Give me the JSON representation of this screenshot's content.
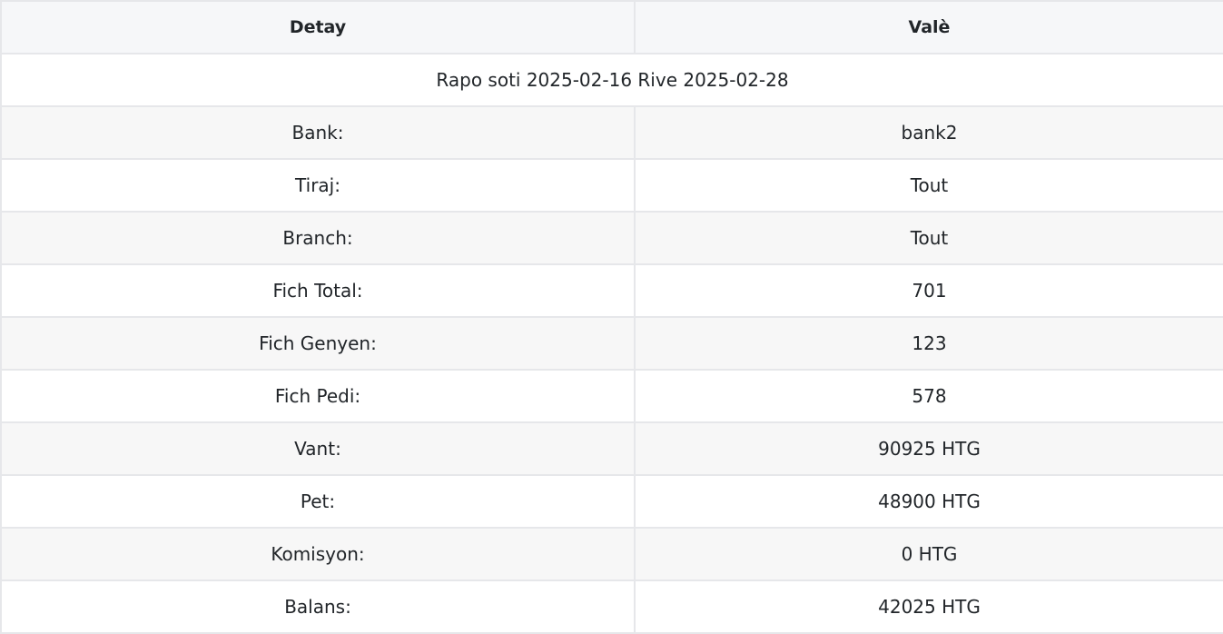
{
  "table": {
    "headers": [
      "Detay",
      "Valè"
    ],
    "banner": "Rapo soti 2025-02-16 Rive 2025-02-28",
    "rows": [
      {
        "label": "Bank:",
        "value": "bank2"
      },
      {
        "label": "Tiraj:",
        "value": "Tout"
      },
      {
        "label": "Branch:",
        "value": "Tout"
      },
      {
        "label": "Fich Total:",
        "value": "701"
      },
      {
        "label": "Fich Genyen:",
        "value": "123"
      },
      {
        "label": "Fich Pedi:",
        "value": "578"
      },
      {
        "label": "Vant:",
        "value": "90925 HTG"
      },
      {
        "label": "Pet:",
        "value": "48900 HTG"
      },
      {
        "label": "Komisyon:",
        "value": "0 HTG"
      },
      {
        "label": "Balans:",
        "value": "42025 HTG"
      }
    ]
  }
}
